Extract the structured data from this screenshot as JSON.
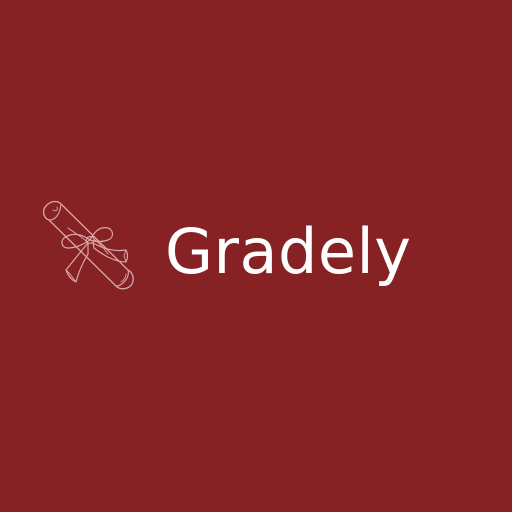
{
  "brand": {
    "name": "Gradely",
    "icon": "diploma-scroll-icon"
  },
  "colors": {
    "background": "#862224",
    "wordmark": "#ffffff",
    "icon_stroke": "#d9a7a8"
  }
}
